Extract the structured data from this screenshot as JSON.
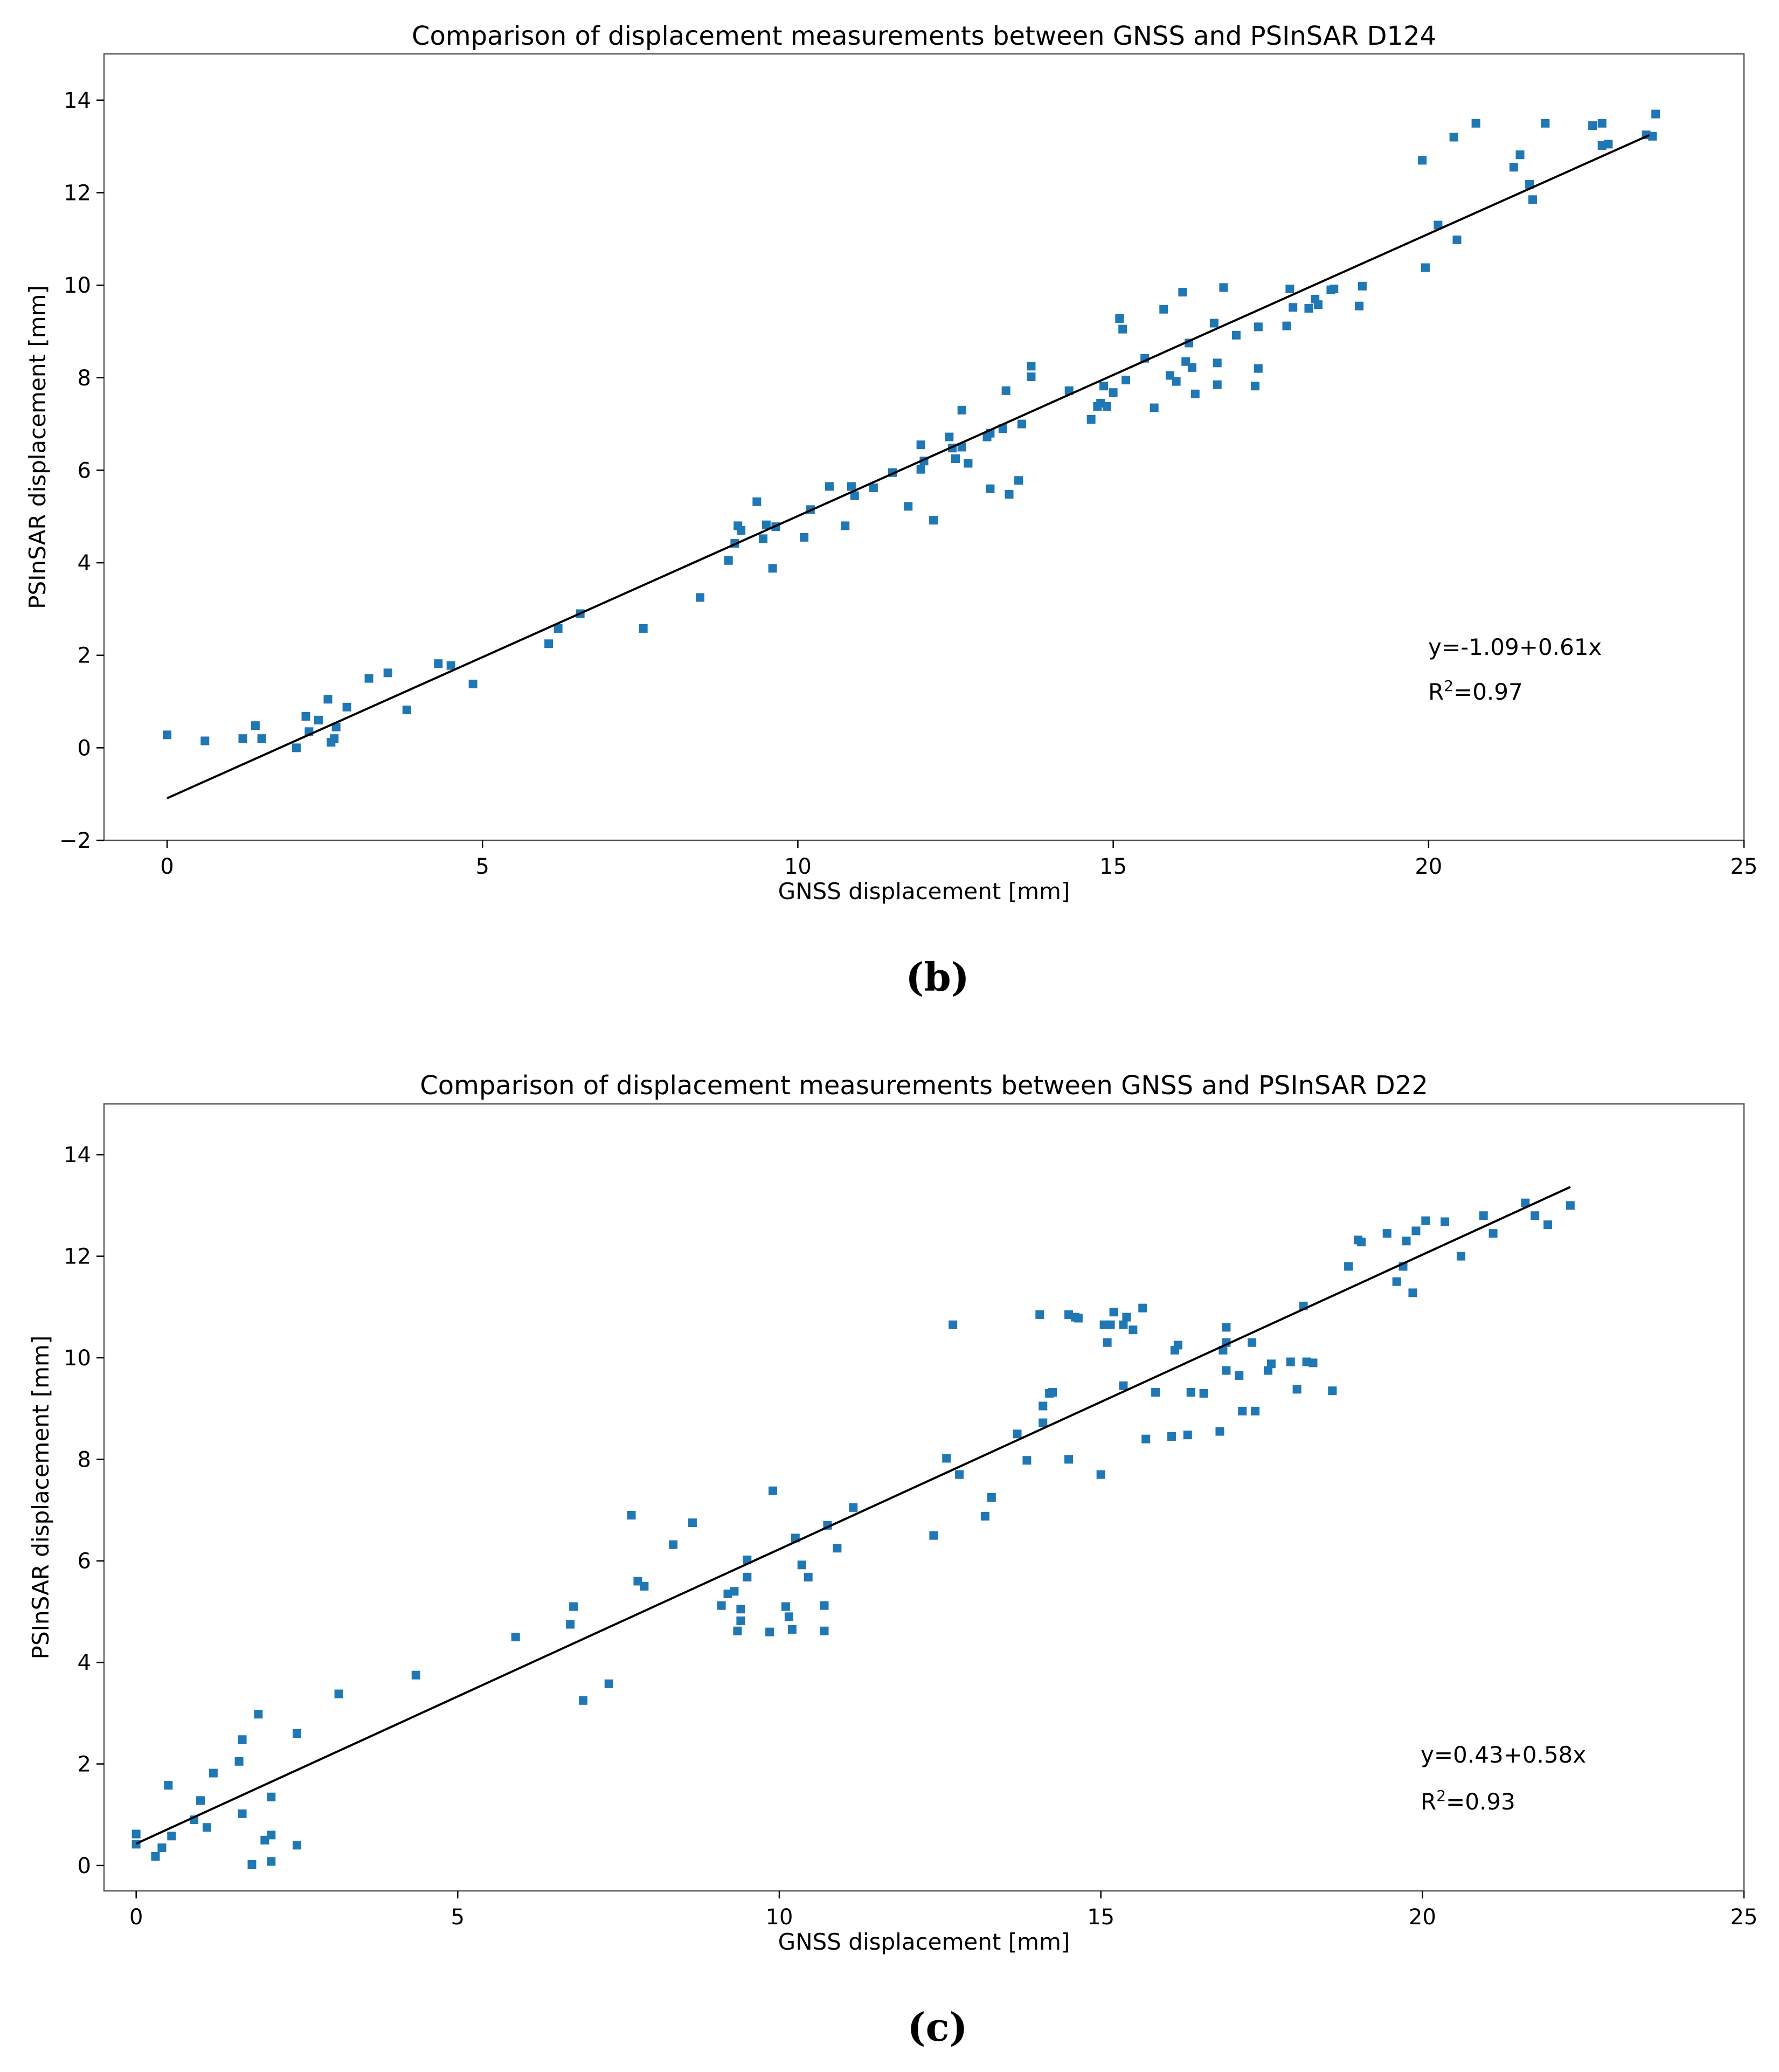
{
  "chart_data": [
    {
      "type": "scatter",
      "title": "Comparison of displacement measurements between GNSS and PSInSAR D124",
      "xlabel": "GNSS displacement [mm]",
      "ylabel": "PSInSAR displacement [mm]",
      "xlim": [
        -1,
        25
      ],
      "ylim": [
        -2,
        15
      ],
      "xticks": [
        0,
        5,
        10,
        15,
        20,
        25
      ],
      "yticks": [
        -2,
        0,
        2,
        4,
        6,
        8,
        10,
        12,
        14
      ],
      "grid": false,
      "marker_color": "#1f77b4",
      "line_color": "#000000",
      "fit": {
        "intercept": -1.09,
        "slope": 0.61,
        "x_range": [
          0,
          23.5
        ]
      },
      "equation_text": "y=-1.09+0.61x",
      "r2_label": "R",
      "r2_sup": "2",
      "r2_value": "=0.97",
      "caption": "(b)",
      "points": [
        [
          0,
          0.28
        ],
        [
          0.6,
          0.15
        ],
        [
          1.2,
          0.2
        ],
        [
          1.4,
          0.48
        ],
        [
          1.5,
          0.2
        ],
        [
          2.05,
          0.0
        ],
        [
          2.2,
          0.68
        ],
        [
          2.25,
          0.35
        ],
        [
          2.4,
          0.6
        ],
        [
          2.55,
          1.05
        ],
        [
          2.6,
          0.12
        ],
        [
          2.65,
          0.2
        ],
        [
          2.68,
          0.45
        ],
        [
          2.85,
          0.88
        ],
        [
          3.2,
          1.5
        ],
        [
          3.5,
          1.62
        ],
        [
          3.8,
          0.82
        ],
        [
          4.3,
          1.82
        ],
        [
          4.5,
          1.78
        ],
        [
          4.85,
          1.38
        ],
        [
          6.05,
          2.25
        ],
        [
          6.2,
          2.58
        ],
        [
          6.55,
          2.9
        ],
        [
          7.55,
          2.58
        ],
        [
          8.45,
          3.25
        ],
        [
          8.9,
          4.05
        ],
        [
          9.0,
          4.42
        ],
        [
          9.05,
          4.8
        ],
        [
          9.1,
          4.7
        ],
        [
          9.35,
          5.32
        ],
        [
          9.45,
          4.52
        ],
        [
          9.5,
          4.82
        ],
        [
          9.6,
          3.88
        ],
        [
          9.65,
          4.78
        ],
        [
          10.1,
          4.55
        ],
        [
          10.2,
          5.15
        ],
        [
          10.5,
          5.65
        ],
        [
          10.75,
          4.8
        ],
        [
          10.85,
          5.65
        ],
        [
          10.9,
          5.45
        ],
        [
          11.2,
          5.62
        ],
        [
          11.5,
          5.95
        ],
        [
          11.75,
          5.22
        ],
        [
          11.95,
          6.02
        ],
        [
          11.95,
          6.55
        ],
        [
          12.0,
          6.2
        ],
        [
          12.15,
          4.92
        ],
        [
          12.4,
          6.72
        ],
        [
          12.45,
          6.48
        ],
        [
          12.5,
          6.25
        ],
        [
          12.6,
          6.5
        ],
        [
          12.6,
          7.3
        ],
        [
          12.7,
          6.15
        ],
        [
          13.0,
          6.72
        ],
        [
          13.05,
          6.8
        ],
        [
          13.05,
          5.6
        ],
        [
          13.25,
          6.9
        ],
        [
          13.3,
          7.72
        ],
        [
          13.35,
          5.48
        ],
        [
          13.5,
          5.78
        ],
        [
          13.55,
          7.0
        ],
        [
          13.7,
          8.02
        ],
        [
          13.7,
          8.25
        ],
        [
          14.3,
          7.72
        ],
        [
          14.65,
          7.1
        ],
        [
          14.75,
          7.38
        ],
        [
          14.8,
          7.45
        ],
        [
          14.85,
          7.82
        ],
        [
          14.9,
          7.38
        ],
        [
          15.0,
          7.68
        ],
        [
          15.1,
          9.28
        ],
        [
          15.15,
          9.05
        ],
        [
          15.2,
          7.95
        ],
        [
          15.5,
          8.42
        ],
        [
          15.65,
          7.35
        ],
        [
          15.8,
          9.48
        ],
        [
          15.9,
          8.05
        ],
        [
          16.0,
          7.92
        ],
        [
          16.1,
          9.85
        ],
        [
          16.15,
          8.35
        ],
        [
          16.2,
          8.75
        ],
        [
          16.25,
          8.22
        ],
        [
          16.3,
          7.65
        ],
        [
          16.6,
          9.18
        ],
        [
          16.65,
          7.85
        ],
        [
          16.65,
          8.32
        ],
        [
          16.75,
          9.95
        ],
        [
          16.95,
          8.92
        ],
        [
          17.25,
          7.82
        ],
        [
          17.3,
          9.1
        ],
        [
          17.3,
          8.2
        ],
        [
          17.75,
          9.12
        ],
        [
          17.8,
          9.92
        ],
        [
          17.85,
          9.52
        ],
        [
          18.1,
          9.5
        ],
        [
          18.2,
          9.7
        ],
        [
          18.25,
          9.58
        ],
        [
          18.45,
          9.9
        ],
        [
          18.5,
          9.92
        ],
        [
          18.9,
          9.55
        ],
        [
          18.95,
          9.98
        ],
        [
          19.9,
          12.7
        ],
        [
          19.95,
          10.38
        ],
        [
          20.15,
          11.3
        ],
        [
          20.4,
          13.2
        ],
        [
          20.45,
          10.98
        ],
        [
          20.75,
          13.5
        ],
        [
          21.35,
          12.55
        ],
        [
          21.45,
          12.82
        ],
        [
          21.6,
          12.18
        ],
        [
          21.65,
          11.85
        ],
        [
          21.85,
          13.5
        ],
        [
          22.6,
          13.45
        ],
        [
          22.75,
          13.5
        ],
        [
          22.75,
          13.02
        ],
        [
          22.85,
          13.05
        ],
        [
          23.45,
          13.25
        ],
        [
          23.55,
          13.22
        ],
        [
          23.6,
          13.7
        ]
      ]
    },
    {
      "type": "scatter",
      "title": "Comparison of displacement measurements between GNSS and PSInSAR D22",
      "xlabel": "GNSS displacement [mm]",
      "ylabel": "PSInSAR displacement [mm]",
      "xlim": [
        -0.5,
        25
      ],
      "ylim": [
        -0.5,
        15
      ],
      "xticks": [
        0,
        5,
        10,
        15,
        20,
        25
      ],
      "yticks": [
        0,
        2,
        4,
        6,
        8,
        10,
        12,
        14
      ],
      "grid": false,
      "marker_color": "#1f77b4",
      "line_color": "#000000",
      "fit": {
        "intercept": 0.43,
        "slope": 0.58,
        "x_range": [
          0,
          22.3
        ]
      },
      "equation_text": "y=0.43+0.58x",
      "r2_label": "R",
      "r2_sup": "2",
      "r2_value": "=0.93",
      "caption": "(c)",
      "points": [
        [
          0.0,
          0.62
        ],
        [
          0.0,
          0.42
        ],
        [
          0.3,
          0.18
        ],
        [
          0.4,
          0.35
        ],
        [
          0.5,
          1.58
        ],
        [
          0.55,
          0.58
        ],
        [
          0.9,
          0.9
        ],
        [
          1.0,
          1.28
        ],
        [
          1.1,
          0.75
        ],
        [
          1.2,
          1.82
        ],
        [
          1.6,
          2.05
        ],
        [
          1.65,
          2.48
        ],
        [
          1.65,
          1.02
        ],
        [
          1.8,
          0.02
        ],
        [
          1.9,
          2.98
        ],
        [
          2.0,
          0.5
        ],
        [
          2.1,
          1.35
        ],
        [
          2.1,
          0.6
        ],
        [
          2.1,
          0.08
        ],
        [
          2.5,
          2.6
        ],
        [
          2.5,
          0.4
        ],
        [
          3.15,
          3.38
        ],
        [
          4.35,
          3.75
        ],
        [
          5.9,
          4.5
        ],
        [
          6.75,
          4.75
        ],
        [
          6.8,
          5.1
        ],
        [
          6.95,
          3.25
        ],
        [
          7.35,
          3.58
        ],
        [
          7.7,
          6.9
        ],
        [
          7.8,
          5.6
        ],
        [
          7.9,
          5.5
        ],
        [
          8.35,
          6.32
        ],
        [
          8.65,
          6.75
        ],
        [
          9.1,
          5.12
        ],
        [
          9.2,
          5.35
        ],
        [
          9.3,
          5.4
        ],
        [
          9.35,
          4.62
        ],
        [
          9.4,
          4.82
        ],
        [
          9.4,
          5.05
        ],
        [
          9.5,
          5.68
        ],
        [
          9.5,
          6.02
        ],
        [
          9.85,
          4.6
        ],
        [
          9.9,
          7.38
        ],
        [
          10.1,
          5.1
        ],
        [
          10.15,
          4.9
        ],
        [
          10.2,
          4.65
        ],
        [
          10.25,
          6.45
        ],
        [
          10.35,
          5.92
        ],
        [
          10.45,
          5.68
        ],
        [
          10.7,
          4.62
        ],
        [
          10.7,
          5.12
        ],
        [
          10.75,
          6.7
        ],
        [
          10.9,
          6.25
        ],
        [
          11.15,
          7.05
        ],
        [
          12.4,
          6.5
        ],
        [
          12.6,
          8.02
        ],
        [
          12.7,
          10.65
        ],
        [
          12.8,
          7.7
        ],
        [
          13.2,
          6.88
        ],
        [
          13.3,
          7.25
        ],
        [
          13.7,
          8.5
        ],
        [
          13.85,
          7.98
        ],
        [
          14.05,
          10.85
        ],
        [
          14.1,
          9.05
        ],
        [
          14.1,
          8.72
        ],
        [
          14.2,
          9.3
        ],
        [
          14.25,
          9.32
        ],
        [
          14.5,
          10.85
        ],
        [
          14.5,
          8.0
        ],
        [
          14.6,
          10.8
        ],
        [
          14.65,
          10.78
        ],
        [
          15.0,
          7.7
        ],
        [
          15.05,
          10.65
        ],
        [
          15.1,
          10.3
        ],
        [
          15.15,
          10.65
        ],
        [
          15.2,
          10.9
        ],
        [
          15.35,
          9.45
        ],
        [
          15.35,
          10.65
        ],
        [
          15.4,
          10.8
        ],
        [
          15.5,
          10.55
        ],
        [
          15.65,
          10.98
        ],
        [
          15.7,
          8.4
        ],
        [
          15.85,
          9.32
        ],
        [
          16.1,
          8.45
        ],
        [
          16.15,
          10.15
        ],
        [
          16.2,
          10.25
        ],
        [
          16.35,
          8.48
        ],
        [
          16.4,
          9.32
        ],
        [
          16.6,
          9.3
        ],
        [
          16.85,
          8.55
        ],
        [
          16.9,
          10.15
        ],
        [
          16.95,
          10.3
        ],
        [
          16.95,
          10.6
        ],
        [
          16.95,
          9.75
        ],
        [
          17.15,
          9.65
        ],
        [
          17.2,
          8.95
        ],
        [
          17.35,
          10.3
        ],
        [
          17.4,
          8.95
        ],
        [
          17.6,
          9.75
        ],
        [
          17.65,
          9.88
        ],
        [
          17.95,
          9.92
        ],
        [
          18.05,
          9.38
        ],
        [
          18.15,
          11.02
        ],
        [
          18.2,
          9.92
        ],
        [
          18.3,
          9.9
        ],
        [
          18.6,
          9.35
        ],
        [
          18.85,
          11.8
        ],
        [
          19.0,
          12.32
        ],
        [
          19.05,
          12.28
        ],
        [
          19.45,
          12.45
        ],
        [
          19.6,
          11.5
        ],
        [
          19.7,
          11.8
        ],
        [
          19.75,
          12.3
        ],
        [
          19.85,
          11.28
        ],
        [
          19.9,
          12.5
        ],
        [
          20.05,
          12.7
        ],
        [
          20.35,
          12.68
        ],
        [
          20.6,
          12.0
        ],
        [
          20.95,
          12.8
        ],
        [
          21.1,
          12.45
        ],
        [
          21.6,
          13.05
        ],
        [
          21.75,
          12.8
        ],
        [
          21.95,
          12.62
        ],
        [
          22.3,
          13.0
        ]
      ]
    }
  ]
}
